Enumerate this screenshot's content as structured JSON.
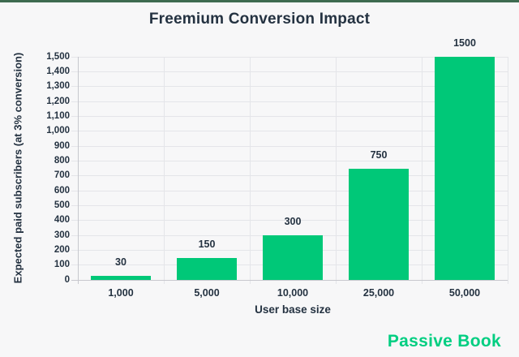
{
  "page": {
    "brand": "Passive Book",
    "background": "#f7f7f8",
    "top_border_color": "#3e6b50",
    "text_color": "#243241",
    "brand_color": "#00ce81"
  },
  "chart_data": {
    "type": "bar",
    "title": "Freemium Conversion Impact",
    "categories": [
      "1,000",
      "5,000",
      "10,000",
      "25,000",
      "50,000"
    ],
    "values": [
      30,
      150,
      300,
      750,
      1500
    ],
    "value_labels": [
      "30",
      "150",
      "300",
      "750",
      "1500"
    ],
    "xlabel": "User base size",
    "ylabel": "Expected paid subscribers (at 3% conversion)",
    "ylim": [
      0,
      1500
    ],
    "ytick_step": 100,
    "ytick_labels": [
      "0",
      "100",
      "200",
      "300",
      "400",
      "500",
      "600",
      "700",
      "800",
      "900",
      "1,000",
      "1,100",
      "1,200",
      "1,300",
      "1,400",
      "1,500"
    ],
    "grid": true,
    "legend": false,
    "bar_color": "#00c878"
  }
}
